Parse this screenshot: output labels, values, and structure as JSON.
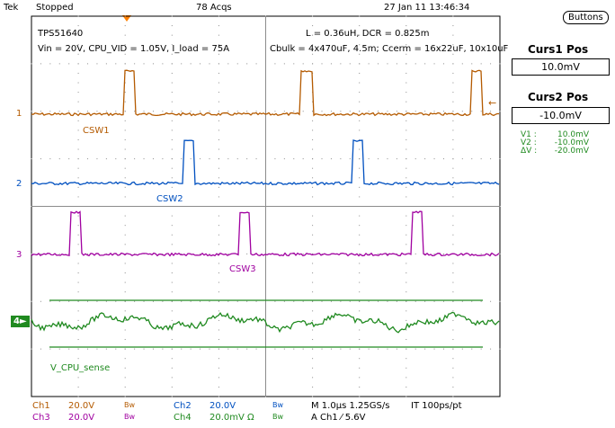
{
  "header": {
    "brand": "Tek",
    "state": "Stopped",
    "acqs": "78 Acqs",
    "datetime": "27 Jan 11 13:46:34"
  },
  "annotations": {
    "device": "TPS51640",
    "conditions": "Vin = 20V, CPU_VID = 1.05V, I_load = 75A",
    "inductor": "L = 0.36uH, DCR = 0.825m",
    "caps": "Cbulk = 4x470uF, 4.5m;  Ccerm = 16x22uF, 10x10uF"
  },
  "channels": [
    {
      "marker": "1",
      "label": "CSW1",
      "color": "#b45a00"
    },
    {
      "marker": "2",
      "label": "CSW2",
      "color": "#0050c0"
    },
    {
      "marker": "3",
      "label": "CSW3",
      "color": "#a000a0"
    },
    {
      "marker": "4",
      "label": "V_CPU_sense",
      "color": "#208a20"
    }
  ],
  "side_panel": {
    "buttons_label": "Buttons",
    "curs1_title": "Curs1 Pos",
    "curs1_value": "10.0mV",
    "curs2_title": "Curs2 Pos",
    "curs2_value": "-10.0mV",
    "readouts": [
      {
        "name": "V1 :",
        "value": "10.0mV"
      },
      {
        "name": "V2 :",
        "value": "-10.0mV"
      },
      {
        "name": "ΔV :",
        "value": "-20.0mV"
      }
    ]
  },
  "footer": {
    "ch1": "Ch1",
    "ch1_scale": "20.0V",
    "ch1_bw": "Bw",
    "ch2": "Ch2",
    "ch2_scale": "20.0V",
    "ch2_bw": "Bw",
    "ch3": "Ch3",
    "ch3_scale": "20.0V",
    "ch3_bw": "Bw",
    "ch4": "Ch4",
    "ch4_scale": "20.0mV Ω",
    "ch4_bw": "Bw",
    "timebase": "M 1.0µs 1.25GS/s",
    "interp": "IT 100ps/pt",
    "trigger": "A  Ch1  ⁄  5.6V"
  },
  "colors": {
    "ch1": "#b45a00",
    "ch2": "#0050c0",
    "ch3": "#a000a0",
    "ch4": "#208a20",
    "grid": "#8c8c8c",
    "trigger_marker": "#ff8000"
  }
}
